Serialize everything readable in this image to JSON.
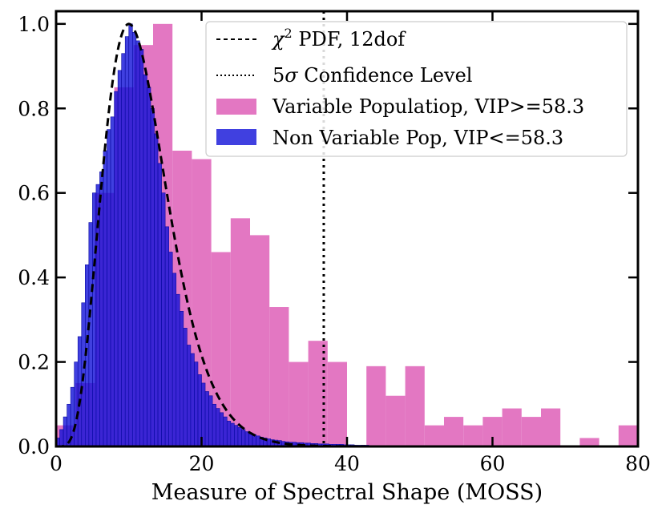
{
  "chart_data": {
    "type": "bar",
    "title": "",
    "xlabel": "Measure of Spectral Shape (MOSS)",
    "ylabel": "",
    "xlim": [
      0,
      80
    ],
    "ylim": [
      0,
      1.03
    ],
    "xticks": [
      0,
      20,
      40,
      60,
      80
    ],
    "yticks": [
      0.0,
      0.2,
      0.4,
      0.6,
      0.8,
      1.0
    ],
    "xtick_labels": [
      "0",
      "20",
      "40",
      "60",
      "80"
    ],
    "ytick_labels": [
      "0.0",
      "0.2",
      "0.4",
      "0.6",
      "0.8",
      "1.0"
    ],
    "legend_position": "top-right",
    "grid": false,
    "colors": {
      "variable": "#e377c2",
      "non_variable": "#1010d8",
      "non_variable_edge": "#0a0aa0",
      "pdf": "#000000",
      "threshold": "#000000"
    },
    "series": [
      {
        "name": "Variable Populatiop, VIP>=58.3",
        "kind": "histogram",
        "bin_width": 2.667,
        "bins_left": [
          0.0,
          2.667,
          5.333,
          8.0,
          10.667,
          13.333,
          16.0,
          18.667,
          21.333,
          24.0,
          26.667,
          29.333,
          32.0,
          34.667,
          37.333,
          40.0,
          42.667,
          45.333,
          48.0,
          50.667,
          53.333,
          56.0,
          58.667,
          61.333,
          64.0,
          66.667,
          69.333,
          72.0,
          74.667,
          77.333
        ],
        "values": [
          0.05,
          0.15,
          0.6,
          0.85,
          0.95,
          1.0,
          0.7,
          0.68,
          0.46,
          0.54,
          0.5,
          0.33,
          0.2,
          0.25,
          0.2,
          0.0,
          0.19,
          0.12,
          0.19,
          0.05,
          0.07,
          0.05,
          0.07,
          0.09,
          0.07,
          0.09,
          0.0,
          0.02,
          0.0,
          0.05
        ]
      },
      {
        "name": "Non Variable Pop, VIP<=58.3",
        "kind": "histogram",
        "bin_width": 0.5,
        "x_start": 0,
        "values": [
          0.02,
          0.04,
          0.07,
          0.1,
          0.14,
          0.2,
          0.26,
          0.34,
          0.43,
          0.53,
          0.6,
          0.62,
          0.65,
          0.7,
          0.75,
          0.78,
          0.84,
          0.89,
          0.93,
          0.97,
          1.0,
          0.98,
          0.96,
          0.94,
          0.88,
          0.85,
          0.8,
          0.74,
          0.67,
          0.6,
          0.52,
          0.46,
          0.41,
          0.36,
          0.32,
          0.28,
          0.24,
          0.22,
          0.2,
          0.17,
          0.15,
          0.13,
          0.12,
          0.1,
          0.09,
          0.08,
          0.07,
          0.06,
          0.055,
          0.05,
          0.045,
          0.04,
          0.035,
          0.03,
          0.028,
          0.025,
          0.022,
          0.02,
          0.018,
          0.016,
          0.015,
          0.014,
          0.012,
          0.011,
          0.01,
          0.01,
          0.009,
          0.009,
          0.008,
          0.008,
          0.007,
          0.007,
          0.006,
          0.006,
          0.006,
          0.005,
          0.005,
          0.005,
          0.005,
          0.004,
          0.004,
          0.004,
          0.003,
          0.003,
          0.003,
          0.003,
          0.002,
          0.002
        ]
      },
      {
        "name": "χ² PDF, 12dof",
        "kind": "pdf",
        "dof": 12,
        "style": "dashed"
      },
      {
        "name": "5σ Confidence Level",
        "kind": "vline",
        "x": 36.8,
        "style": "dotted"
      }
    ],
    "legend": [
      {
        "key": "pdf",
        "prefix": "χ",
        "sup": "2",
        "suffix": " PDF, 12dof"
      },
      {
        "key": "threshold",
        "prefix": "5",
        "italic": "σ",
        "suffix": " Confidence Level"
      },
      {
        "key": "variable",
        "text": "Variable Populatiop, VIP>=58.3"
      },
      {
        "key": "non_variable",
        "text": "Non Variable Pop, VIP<=58.3"
      }
    ]
  }
}
